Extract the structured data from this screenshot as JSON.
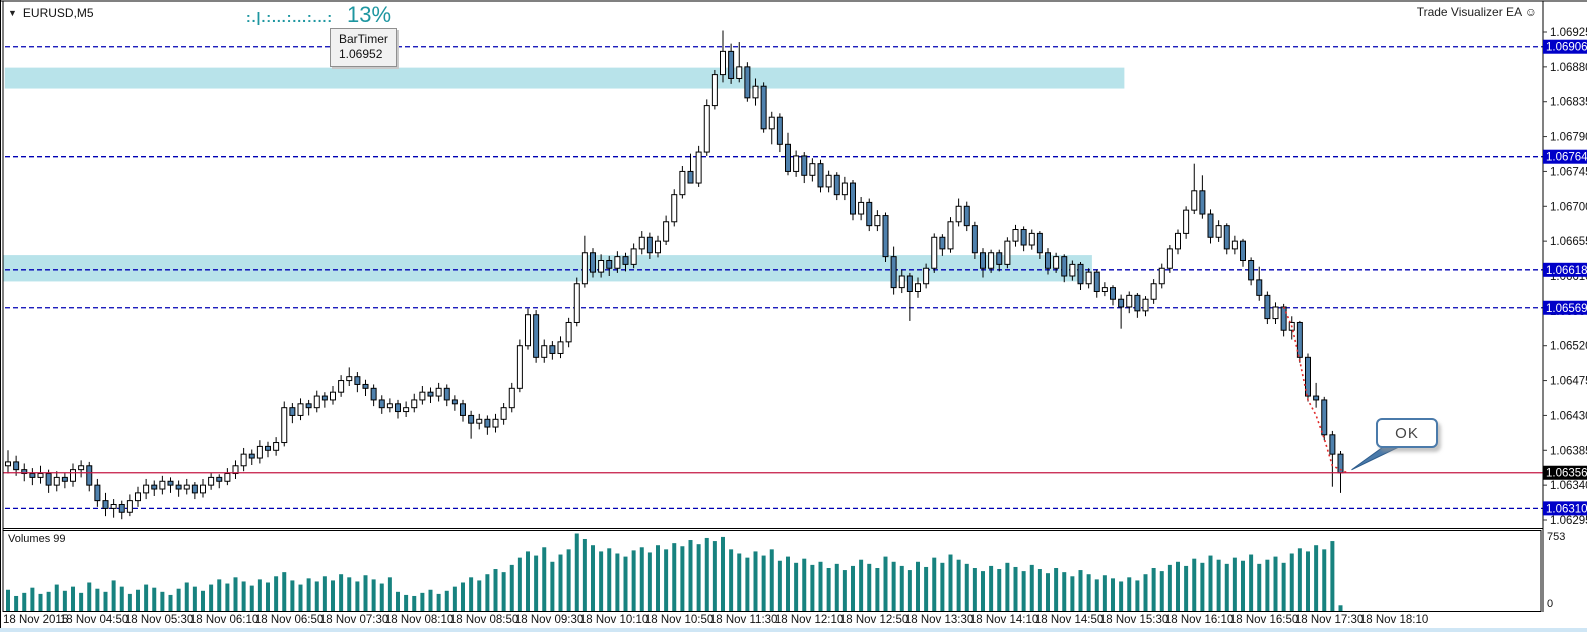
{
  "window": {
    "symbol_label": "EURUSD,M5",
    "ea_label": "Trade Visualizer EA ☺"
  },
  "bartimer": {
    "pattern": ":.|.:...:...:...:",
    "percent": "13%",
    "tooltip_title": "BarTimer",
    "tooltip_value": "1.06952"
  },
  "callout": {
    "label": "OK"
  },
  "volume_pane": {
    "label": "Volumes 99",
    "scale_max": "753",
    "scale_min": "0"
  },
  "colors": {
    "accent_teal": "#1d96a0",
    "bull_fill": "#ffffff",
    "bear_fill": "#4f81ad",
    "outline": "#000000",
    "level_blue": "#0000b4",
    "label_blue": "#0000c8",
    "label_black": "#000000",
    "band_cyan": "#b8e3ea",
    "price_line_red": "#c51945",
    "trail_red": "#e02828",
    "volume_teal": "#17827f",
    "callout_blue": "#4a7aaa",
    "axis_text": "#111111"
  },
  "chart_data": {
    "type": "candlestick+volume",
    "symbol": "EURUSD",
    "timeframe": "M5",
    "y_ticks": [
      "1.06925",
      "1.06880",
      "1.06835",
      "1.06790",
      "1.06745",
      "1.06700",
      "1.06655",
      "1.06610",
      "1.06565",
      "1.06520",
      "1.06475",
      "1.06430",
      "1.06385",
      "1.06340",
      "1.06295"
    ],
    "y_tick_values": [
      1.06925,
      1.0688,
      1.06835,
      1.0679,
      1.06745,
      1.067,
      1.06655,
      1.0661,
      1.06565,
      1.0652,
      1.06475,
      1.0643,
      1.06385,
      1.0634,
      1.06295
    ],
    "levels": [
      {
        "price": 1.06906,
        "label": "1.06906",
        "style": "dashed"
      },
      {
        "price": 1.06764,
        "label": "1.06764",
        "style": "dashed"
      },
      {
        "price": 1.06618,
        "label": "1.06618",
        "style": "dashed"
      },
      {
        "price": 1.06569,
        "label": "1.06569",
        "style": "dashed"
      },
      {
        "price": 1.0631,
        "label": "1.06310",
        "style": "dashed"
      }
    ],
    "current_price": {
      "price": 1.06356,
      "label": "1.06356"
    },
    "zones": [
      {
        "top": 1.06879,
        "bottom": 1.06852,
        "start_bar": -0.4,
        "end_bar": 137.4
      },
      {
        "top": 1.06637,
        "bottom": 1.06603,
        "start_bar": -0.6,
        "end_bar": 133.4
      }
    ],
    "trail": [
      [
        157,
        1.0657
      ],
      [
        158,
        1.06545
      ],
      [
        159,
        1.065
      ],
      [
        160,
        1.0645
      ],
      [
        161,
        1.0643
      ],
      [
        162,
        1.064
      ],
      [
        163,
        1.06365
      ],
      [
        164.8,
        1.06356
      ]
    ],
    "x_labels": [
      {
        "bar": 0,
        "text": "18 Nov 2015"
      },
      {
        "bar": 7,
        "text": "18 Nov 04:50"
      },
      {
        "bar": 15,
        "text": "18 Nov 05:30"
      },
      {
        "bar": 23,
        "text": "18 Nov 06:10"
      },
      {
        "bar": 31,
        "text": "18 Nov 06:50"
      },
      {
        "bar": 39,
        "text": "18 Nov 07:30"
      },
      {
        "bar": 47,
        "text": "18 Nov 08:10"
      },
      {
        "bar": 55,
        "text": "18 Nov 08:50"
      },
      {
        "bar": 63,
        "text": "18 Nov 09:30"
      },
      {
        "bar": 71,
        "text": "18 Nov 10:10"
      },
      {
        "bar": 79,
        "text": "18 Nov 10:50"
      },
      {
        "bar": 87,
        "text": "18 Nov 11:30"
      },
      {
        "bar": 95,
        "text": "18 Nov 12:10"
      },
      {
        "bar": 103,
        "text": "18 Nov 12:50"
      },
      {
        "bar": 111,
        "text": "18 Nov 13:30"
      },
      {
        "bar": 119,
        "text": "18 Nov 14:10"
      },
      {
        "bar": 127,
        "text": "18 Nov 14:50"
      },
      {
        "bar": 135,
        "text": "18 Nov 15:30"
      },
      {
        "bar": 143,
        "text": "18 Nov 16:10"
      },
      {
        "bar": 151,
        "text": "18 Nov 16:50"
      },
      {
        "bar": 159,
        "text": "18 Nov 17:30"
      },
      {
        "bar": 167,
        "text": "18 Nov 18:10"
      }
    ],
    "candles": [
      [
        1.06365,
        1.06385,
        1.06355,
        1.0637
      ],
      [
        1.0637,
        1.06378,
        1.06352,
        1.0636
      ],
      [
        1.0636,
        1.06368,
        1.06345,
        1.06355
      ],
      [
        1.06355,
        1.06362,
        1.0634,
        1.0635
      ],
      [
        1.0635,
        1.06365,
        1.06342,
        1.06355
      ],
      [
        1.06355,
        1.0636,
        1.0633,
        1.0634
      ],
      [
        1.0634,
        1.06358,
        1.06332,
        1.0635
      ],
      [
        1.0635,
        1.06356,
        1.06336,
        1.06345
      ],
      [
        1.06345,
        1.06368,
        1.06338,
        1.0636
      ],
      [
        1.0636,
        1.06372,
        1.0635,
        1.06365
      ],
      [
        1.06365,
        1.0637,
        1.06332,
        1.0634
      ],
      [
        1.0634,
        1.06348,
        1.06312,
        1.0632
      ],
      [
        1.0632,
        1.0633,
        1.063,
        1.0631
      ],
      [
        1.0631,
        1.06322,
        1.06298,
        1.06315
      ],
      [
        1.06315,
        1.0632,
        1.06296,
        1.06305
      ],
      [
        1.06305,
        1.06328,
        1.063,
        1.0632
      ],
      [
        1.0632,
        1.06338,
        1.06312,
        1.0633
      ],
      [
        1.0633,
        1.06348,
        1.06322,
        1.0634
      ],
      [
        1.0634,
        1.06346,
        1.06326,
        1.06335
      ],
      [
        1.06335,
        1.06352,
        1.06328,
        1.06345
      ],
      [
        1.06345,
        1.0635,
        1.0633,
        1.0634
      ],
      [
        1.0634,
        1.06346,
        1.06325,
        1.06335
      ],
      [
        1.06335,
        1.06348,
        1.06328,
        1.0634
      ],
      [
        1.0634,
        1.06344,
        1.06322,
        1.0633
      ],
      [
        1.0633,
        1.06348,
        1.06324,
        1.0634
      ],
      [
        1.0634,
        1.06356,
        1.06334,
        1.0635
      ],
      [
        1.0635,
        1.06354,
        1.06336,
        1.06345
      ],
      [
        1.06345,
        1.06362,
        1.0634,
        1.06355
      ],
      [
        1.06355,
        1.06372,
        1.06348,
        1.06365
      ],
      [
        1.06365,
        1.06388,
        1.06358,
        1.0638
      ],
      [
        1.0638,
        1.06386,
        1.06366,
        1.06375
      ],
      [
        1.06375,
        1.06398,
        1.06368,
        1.0639
      ],
      [
        1.0639,
        1.06396,
        1.06376,
        1.06385
      ],
      [
        1.06385,
        1.06402,
        1.06378,
        1.06395
      ],
      [
        1.06395,
        1.06448,
        1.0639,
        1.0644
      ],
      [
        1.0644,
        1.06446,
        1.0642,
        1.0643
      ],
      [
        1.0643,
        1.06452,
        1.06424,
        1.06445
      ],
      [
        1.06445,
        1.0645,
        1.0643,
        1.0644
      ],
      [
        1.0644,
        1.06462,
        1.06434,
        1.06455
      ],
      [
        1.06455,
        1.0646,
        1.0644,
        1.0645
      ],
      [
        1.0645,
        1.06468,
        1.06444,
        1.0646
      ],
      [
        1.0646,
        1.06482,
        1.06454,
        1.06475
      ],
      [
        1.06475,
        1.06492,
        1.06468,
        1.0648
      ],
      [
        1.0648,
        1.06486,
        1.0646,
        1.0647
      ],
      [
        1.0647,
        1.06476,
        1.06455,
        1.06465
      ],
      [
        1.06465,
        1.0647,
        1.06442,
        1.0645
      ],
      [
        1.0645,
        1.06456,
        1.06432,
        1.0644
      ],
      [
        1.0644,
        1.06452,
        1.06434,
        1.06445
      ],
      [
        1.06445,
        1.0645,
        1.06426,
        1.06435
      ],
      [
        1.06435,
        1.06448,
        1.06428,
        1.0644
      ],
      [
        1.0644,
        1.06458,
        1.06434,
        1.0645
      ],
      [
        1.0645,
        1.06468,
        1.06444,
        1.0646
      ],
      [
        1.0646,
        1.06466,
        1.06446,
        1.06455
      ],
      [
        1.06455,
        1.06472,
        1.06448,
        1.06465
      ],
      [
        1.06465,
        1.0647,
        1.06442,
        1.0645
      ],
      [
        1.0645,
        1.06456,
        1.06436,
        1.06445
      ],
      [
        1.06445,
        1.0645,
        1.06422,
        1.0643
      ],
      [
        1.0643,
        1.06436,
        1.064,
        1.0642
      ],
      [
        1.0642,
        1.06432,
        1.06412,
        1.06425
      ],
      [
        1.06425,
        1.0643,
        1.06405,
        1.06415
      ],
      [
        1.06415,
        1.06432,
        1.06408,
        1.06425
      ],
      [
        1.06425,
        1.06446,
        1.06418,
        1.0644
      ],
      [
        1.0644,
        1.06472,
        1.06434,
        1.06465
      ],
      [
        1.06465,
        1.06528,
        1.0646,
        1.0652
      ],
      [
        1.0652,
        1.06568,
        1.06515,
        1.0656
      ],
      [
        1.0656,
        1.06566,
        1.06498,
        1.06505
      ],
      [
        1.06505,
        1.06528,
        1.06498,
        1.0652
      ],
      [
        1.0652,
        1.06526,
        1.06502,
        1.0651
      ],
      [
        1.0651,
        1.06532,
        1.06504,
        1.06525
      ],
      [
        1.06525,
        1.06556,
        1.06518,
        1.0655
      ],
      [
        1.0655,
        1.06608,
        1.06545,
        1.066
      ],
      [
        1.066,
        1.06662,
        1.06595,
        1.0664
      ],
      [
        1.0664,
        1.06646,
        1.06608,
        1.06615
      ],
      [
        1.06615,
        1.06638,
        1.06608,
        1.0663
      ],
      [
        1.0663,
        1.06636,
        1.0661,
        1.0662
      ],
      [
        1.0662,
        1.06642,
        1.06614,
        1.06635
      ],
      [
        1.06635,
        1.0664,
        1.06616,
        1.06625
      ],
      [
        1.06625,
        1.06652,
        1.0662,
        1.06645
      ],
      [
        1.06645,
        1.06668,
        1.06638,
        1.0666
      ],
      [
        1.0666,
        1.06666,
        1.06632,
        1.0664
      ],
      [
        1.0664,
        1.06662,
        1.06634,
        1.06655
      ],
      [
        1.06655,
        1.06688,
        1.0665,
        1.0668
      ],
      [
        1.0668,
        1.06722,
        1.06674,
        1.06715
      ],
      [
        1.06715,
        1.06752,
        1.0671,
        1.06745
      ],
      [
        1.06745,
        1.06768,
        1.06738,
        1.0673
      ],
      [
        1.0673,
        1.06778,
        1.06725,
        1.0677
      ],
      [
        1.0677,
        1.06838,
        1.06765,
        1.0683
      ],
      [
        1.0683,
        1.06876,
        1.06825,
        1.0687
      ],
      [
        1.0687,
        1.06927,
        1.0686,
        1.069
      ],
      [
        1.069,
        1.0691,
        1.06858,
        1.06865
      ],
      [
        1.06865,
        1.06912,
        1.0686,
        1.0688
      ],
      [
        1.0688,
        1.06886,
        1.06835,
        1.0684
      ],
      [
        1.0684,
        1.06865,
        1.0683,
        1.06855
      ],
      [
        1.06855,
        1.0686,
        1.06795,
        1.068
      ],
      [
        1.068,
        1.06822,
        1.0678,
        1.06815
      ],
      [
        1.06815,
        1.0682,
        1.0677,
        1.0678
      ],
      [
        1.0678,
        1.06795,
        1.0674,
        1.06745
      ],
      [
        1.06745,
        1.06772,
        1.06738,
        1.06765
      ],
      [
        1.06765,
        1.0677,
        1.0673,
        1.0674
      ],
      [
        1.0674,
        1.06762,
        1.06732,
        1.06755
      ],
      [
        1.06755,
        1.0676,
        1.06718,
        1.06725
      ],
      [
        1.06725,
        1.06746,
        1.06718,
        1.0674
      ],
      [
        1.0674,
        1.06744,
        1.06708,
        1.06715
      ],
      [
        1.06715,
        1.06738,
        1.06708,
        1.0673
      ],
      [
        1.0673,
        1.06734,
        1.06682,
        1.0669
      ],
      [
        1.0669,
        1.06712,
        1.06682,
        1.06705
      ],
      [
        1.06705,
        1.0671,
        1.06668,
        1.06675
      ],
      [
        1.06675,
        1.06695,
        1.06668,
        1.06688
      ],
      [
        1.06688,
        1.06692,
        1.06628,
        1.06635
      ],
      [
        1.06635,
        1.06648,
        1.06586,
        1.06595
      ],
      [
        1.06595,
        1.06618,
        1.06588,
        1.0661
      ],
      [
        1.0661,
        1.06614,
        1.06552,
        1.0659
      ],
      [
        1.0659,
        1.06608,
        1.06582,
        1.066
      ],
      [
        1.066,
        1.06626,
        1.06594,
        1.0662
      ],
      [
        1.0662,
        1.06665,
        1.06614,
        1.0666
      ],
      [
        1.0666,
        1.06664,
        1.06636,
        1.06645
      ],
      [
        1.06645,
        1.06686,
        1.0664,
        1.0668
      ],
      [
        1.0668,
        1.0671,
        1.06674,
        1.067
      ],
      [
        1.067,
        1.06706,
        1.06668,
        1.06675
      ],
      [
        1.06675,
        1.0668,
        1.06632,
        1.0664
      ],
      [
        1.0664,
        1.06646,
        1.06608,
        1.0662
      ],
      [
        1.0662,
        1.06644,
        1.06614,
        1.0664
      ],
      [
        1.0664,
        1.06644,
        1.06616,
        1.06625
      ],
      [
        1.06625,
        1.0666,
        1.0662,
        1.06655
      ],
      [
        1.06655,
        1.06676,
        1.06648,
        1.0667
      ],
      [
        1.0667,
        1.06674,
        1.06642,
        1.0665
      ],
      [
        1.0665,
        1.0667,
        1.06644,
        1.06665
      ],
      [
        1.06665,
        1.06668,
        1.06632,
        1.0664
      ],
      [
        1.0664,
        1.06646,
        1.06612,
        1.0662
      ],
      [
        1.0662,
        1.0664,
        1.06614,
        1.06635
      ],
      [
        1.06635,
        1.06638,
        1.06602,
        1.0661
      ],
      [
        1.0661,
        1.0663,
        1.06604,
        1.06625
      ],
      [
        1.06625,
        1.06628,
        1.06592,
        1.066
      ],
      [
        1.066,
        1.0662,
        1.06594,
        1.06615
      ],
      [
        1.06615,
        1.06618,
        1.06582,
        1.0659
      ],
      [
        1.0659,
        1.06602,
        1.06584,
        1.06595
      ],
      [
        1.06595,
        1.06598,
        1.06572,
        1.0658
      ],
      [
        1.0658,
        1.06586,
        1.06542,
        1.0657
      ],
      [
        1.0657,
        1.0659,
        1.06562,
        1.06585
      ],
      [
        1.06585,
        1.06588,
        1.06556,
        1.06565
      ],
      [
        1.06565,
        1.06584,
        1.06558,
        1.0658
      ],
      [
        1.0658,
        1.06606,
        1.06574,
        1.066
      ],
      [
        1.066,
        1.06626,
        1.06594,
        1.0662
      ],
      [
        1.0662,
        1.0665,
        1.06614,
        1.06645
      ],
      [
        1.06645,
        1.0667,
        1.06638,
        1.06665
      ],
      [
        1.06665,
        1.067,
        1.06658,
        1.06695
      ],
      [
        1.06695,
        1.06755,
        1.0669,
        1.0672
      ],
      [
        1.0672,
        1.0674,
        1.06684,
        1.0669
      ],
      [
        1.0669,
        1.06696,
        1.06652,
        1.0666
      ],
      [
        1.0666,
        1.06682,
        1.06654,
        1.06675
      ],
      [
        1.06675,
        1.06678,
        1.06638,
        1.06645
      ],
      [
        1.06645,
        1.06662,
        1.06638,
        1.06655
      ],
      [
        1.06655,
        1.06658,
        1.06622,
        1.0663
      ],
      [
        1.0663,
        1.06634,
        1.06598,
        1.06605
      ],
      [
        1.06605,
        1.06622,
        1.06578,
        1.06585
      ],
      [
        1.06585,
        1.0659,
        1.06548,
        1.06555
      ],
      [
        1.06555,
        1.06576,
        1.06548,
        1.0657
      ],
      [
        1.0657,
        1.06574,
        1.06532,
        1.0654
      ],
      [
        1.0654,
        1.06558,
        1.06528,
        1.0655
      ],
      [
        1.0655,
        1.06552,
        1.06498,
        1.06505
      ],
      [
        1.06505,
        1.0651,
        1.06448,
        1.06455
      ],
      [
        1.06455,
        1.06472,
        1.0644,
        1.0645
      ],
      [
        1.0645,
        1.06454,
        1.06398,
        1.06405
      ],
      [
        1.06405,
        1.0641,
        1.06338,
        1.0638
      ],
      [
        1.0638,
        1.06384,
        1.0633,
        1.06356
      ]
    ],
    "volumes": [
      210,
      150,
      180,
      230,
      170,
      190,
      260,
      200,
      240,
      180,
      280,
      220,
      190,
      300,
      240,
      170,
      210,
      260,
      230,
      190,
      160,
      220,
      280,
      240,
      200,
      260,
      310,
      270,
      330,
      290,
      250,
      310,
      280,
      340,
      380,
      300,
      260,
      320,
      290,
      340,
      300,
      360,
      330,
      290,
      350,
      310,
      270,
      330,
      190,
      160,
      150,
      180,
      210,
      170,
      200,
      240,
      280,
      330,
      300,
      360,
      410,
      380,
      450,
      520,
      580,
      540,
      620,
      480,
      550,
      600,
      753,
      700,
      640,
      580,
      610,
      560,
      530,
      590,
      620,
      570,
      640,
      600,
      660,
      630,
      690,
      650,
      710,
      680,
      720,
      600,
      560,
      520,
      580,
      540,
      600,
      490,
      530,
      470,
      510,
      450,
      480,
      420,
      460,
      400,
      440,
      500,
      460,
      420,
      530,
      480,
      440,
      400,
      480,
      430,
      520,
      470,
      550,
      500,
      460,
      420,
      390,
      440,
      410,
      470,
      430,
      390,
      450,
      410,
      370,
      420,
      380,
      340,
      400,
      360,
      310,
      350,
      320,
      290,
      330,
      300,
      360,
      420,
      390,
      450,
      480,
      440,
      510,
      470,
      540,
      500,
      460,
      520,
      490,
      550,
      460,
      500,
      530,
      470,
      560,
      610,
      580,
      640,
      600,
      680,
      60
    ]
  }
}
